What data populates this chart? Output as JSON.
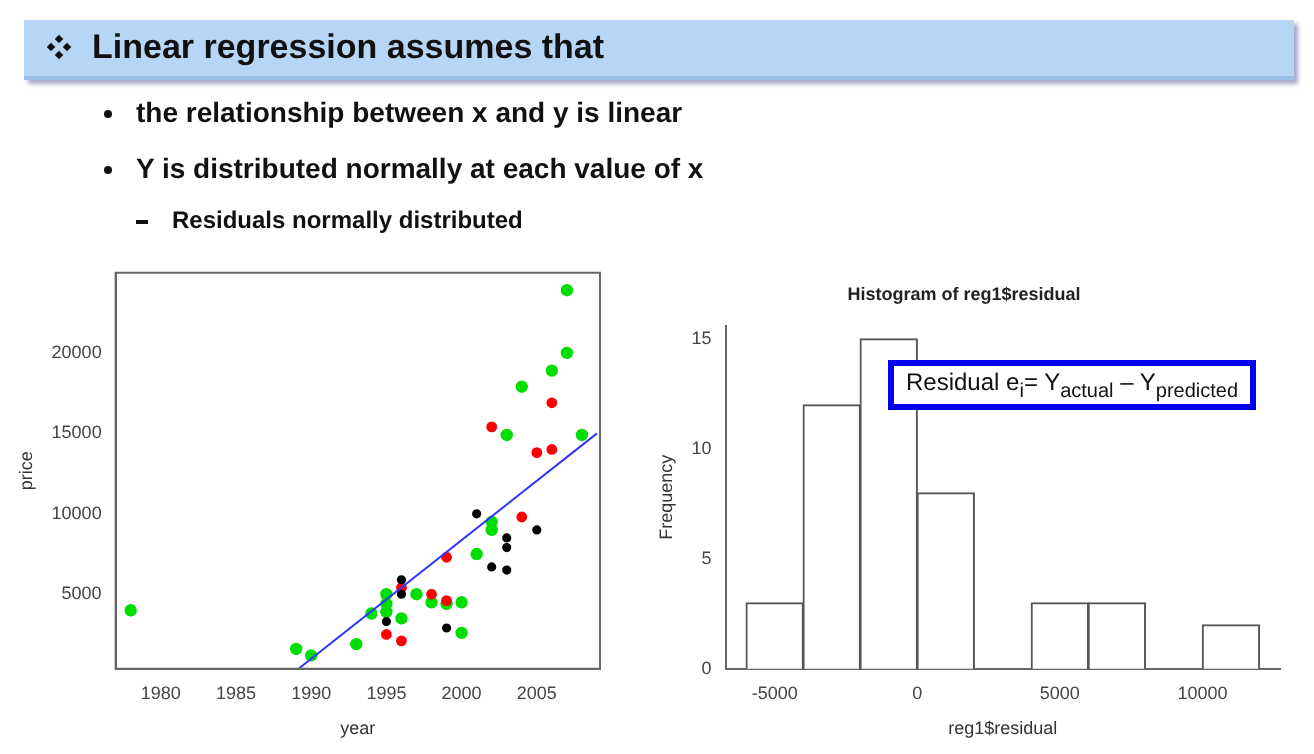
{
  "chart_data": [
    {
      "type": "scatter",
      "title": "Linear regression assumes that",
      "annotations": [
        "the relationship between x and y is linear",
        "Y is distributed normally at each value of x",
        "Residuals normally distributed"
      ],
      "xlabel": "year",
      "ylabel": "price",
      "xlim": [
        1977,
        2009.2
      ],
      "xticks": [
        1980,
        1985,
        1990,
        1995,
        2000,
        2005
      ],
      "ylim": [
        365,
        24980
      ],
      "yticks": [
        5000,
        10000,
        15000,
        20000
      ],
      "grid": false,
      "legend": false,
      "marker": "circle",
      "series": [
        {
          "color": "#00dd00",
          "x": [
            1978,
            1989,
            1990,
            1993,
            1994,
            1995,
            1995,
            1995,
            1996,
            1997,
            1998,
            1999,
            2000,
            2000,
            2001,
            2002,
            2002,
            2003,
            2004,
            2006,
            2007,
            2007,
            2008
          ],
          "values": [
            4000,
            1600,
            1200,
            1900,
            3800,
            5000,
            4400,
            3900,
            3500,
            5000,
            4500,
            4400,
            4500,
            2600,
            7500,
            9500,
            9000,
            14900,
            17900,
            18900,
            20000,
            23900,
            14900
          ]
        },
        {
          "color": "#ff0000",
          "x": [
            1995,
            1996,
            1996,
            1998,
            1999,
            1999,
            2002,
            2004,
            2005,
            2006,
            2006
          ],
          "values": [
            2500,
            2100,
            5400,
            5000,
            7300,
            4600,
            15400,
            9800,
            13800,
            14000,
            16900
          ]
        },
        {
          "color": "#000000",
          "x": [
            1995,
            1996,
            1996,
            1999,
            2001,
            2002,
            2003,
            2003,
            2003,
            2005
          ],
          "values": [
            3300,
            5900,
            5000,
            2900,
            10000,
            6700,
            8500,
            7900,
            6500,
            9000
          ]
        },
        {
          "type": "line",
          "color": "#3333ff",
          "x": [
            1989.2,
            2009
          ],
          "values": [
            400,
            15000
          ],
          "marker": "none"
        }
      ]
    },
    {
      "type": "histogram",
      "title": "Histogram of reg1$residual",
      "xlabel": "reg1$residual",
      "ylabel": "Frequency",
      "bins": [
        -6000,
        -4000,
        -2000,
        0,
        2000,
        4000,
        6000,
        8000,
        10000,
        12000
      ],
      "values": [
        3,
        12,
        15,
        8,
        0,
        3,
        3,
        0,
        2
      ],
      "xlim": [
        -6720,
        12720
      ],
      "xticks": [
        -5000,
        0,
        5000,
        10000
      ],
      "ylim": [
        0,
        15.6
      ],
      "yticks": [
        0,
        5,
        10,
        15
      ],
      "grid": false,
      "legend": false,
      "color": "#ffffff",
      "annotations": [
        "Residual e$_{i}$= Y$_{actual}$ – Y$_{predicted}$"
      ]
    }
  ]
}
